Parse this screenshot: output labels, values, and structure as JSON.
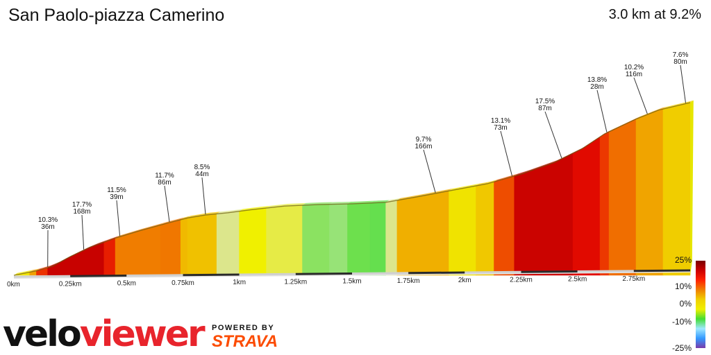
{
  "title": "San Paolo-piazza Camerino",
  "summary": "3.0 km at 9.2%",
  "branding": {
    "logo_velo": "velo",
    "logo_viewer": "viewer",
    "powered_by": "POWERED BY",
    "strava": "STRAVA"
  },
  "chart_data": {
    "type": "area",
    "xlabel": "",
    "ylabel": "",
    "xlim": [
      0,
      3.0
    ],
    "x_ticks": [
      {
        "km": 0,
        "label": "0km"
      },
      {
        "km": 0.25,
        "label": "0.25km"
      },
      {
        "km": 0.5,
        "label": "0.5km"
      },
      {
        "km": 0.75,
        "label": "0.75km"
      },
      {
        "km": 1.0,
        "label": "1km"
      },
      {
        "km": 1.25,
        "label": "1.25km"
      },
      {
        "km": 1.5,
        "label": "1.5km"
      },
      {
        "km": 1.75,
        "label": "1.75km"
      },
      {
        "km": 2.0,
        "label": "2km"
      },
      {
        "km": 2.25,
        "label": "2.25km"
      },
      {
        "km": 2.5,
        "label": "2.5km"
      },
      {
        "km": 2.75,
        "label": "2.75km"
      }
    ],
    "profile": [
      [
        0.0,
        0
      ],
      [
        0.1,
        6
      ],
      [
        0.17,
        12
      ],
      [
        0.25,
        25
      ],
      [
        0.34,
        38
      ],
      [
        0.45,
        50
      ],
      [
        0.56,
        60
      ],
      [
        0.68,
        70
      ],
      [
        0.77,
        77
      ],
      [
        0.85,
        81
      ],
      [
        0.95,
        84
      ],
      [
        1.05,
        88
      ],
      [
        1.2,
        93
      ],
      [
        1.35,
        95
      ],
      [
        1.5,
        96
      ],
      [
        1.65,
        98
      ],
      [
        1.8,
        106
      ],
      [
        1.94,
        114
      ],
      [
        2.1,
        123
      ],
      [
        2.25,
        136
      ],
      [
        2.4,
        152
      ],
      [
        2.52,
        170
      ],
      [
        2.62,
        190
      ],
      [
        2.76,
        210
      ],
      [
        2.86,
        222
      ],
      [
        3.0,
        232
      ]
    ],
    "segments": [
      {
        "from": 0.0,
        "to": 0.07,
        "gradient": 6.0
      },
      {
        "from": 0.07,
        "to": 0.1,
        "gradient": 10.3
      },
      {
        "from": 0.1,
        "to": 0.15,
        "gradient": 14.0
      },
      {
        "from": 0.15,
        "to": 0.4,
        "gradient": 17.7
      },
      {
        "from": 0.4,
        "to": 0.45,
        "gradient": 15.0
      },
      {
        "from": 0.45,
        "to": 0.65,
        "gradient": 11.5
      },
      {
        "from": 0.65,
        "to": 0.74,
        "gradient": 11.7
      },
      {
        "from": 0.74,
        "to": 0.77,
        "gradient": 9.0
      },
      {
        "from": 0.77,
        "to": 0.9,
        "gradient": 8.5
      },
      {
        "from": 0.9,
        "to": 1.0,
        "gradient": 3.0
      },
      {
        "from": 1.0,
        "to": 1.12,
        "gradient": 5.0
      },
      {
        "from": 1.12,
        "to": 1.28,
        "gradient": 4.0
      },
      {
        "from": 1.28,
        "to": 1.4,
        "gradient": 1.5
      },
      {
        "from": 1.4,
        "to": 1.48,
        "gradient": 0.3
      },
      {
        "from": 1.48,
        "to": 1.58,
        "gradient": 1.2
      },
      {
        "from": 1.58,
        "to": 1.65,
        "gradient": 0.6
      },
      {
        "from": 1.65,
        "to": 1.7,
        "gradient": 3.0
      },
      {
        "from": 1.7,
        "to": 1.93,
        "gradient": 9.7
      },
      {
        "from": 1.93,
        "to": 2.05,
        "gradient": 6.0
      },
      {
        "from": 2.05,
        "to": 2.13,
        "gradient": 8.0
      },
      {
        "from": 2.13,
        "to": 2.22,
        "gradient": 13.1
      },
      {
        "from": 2.22,
        "to": 2.48,
        "gradient": 17.5
      },
      {
        "from": 2.48,
        "to": 2.6,
        "gradient": 16.0
      },
      {
        "from": 2.6,
        "to": 2.64,
        "gradient": 13.8
      },
      {
        "from": 2.64,
        "to": 2.76,
        "gradient": 12.0
      },
      {
        "from": 2.76,
        "to": 2.88,
        "gradient": 10.2
      },
      {
        "from": 2.88,
        "to": 3.0,
        "gradient": 7.6
      }
    ],
    "annotations": [
      {
        "km": 0.15,
        "gradient": "10.3%",
        "length": "36m"
      },
      {
        "km": 0.31,
        "gradient": "17.7%",
        "length": "168m"
      },
      {
        "km": 0.47,
        "gradient": "11.5%",
        "length": "39m"
      },
      {
        "km": 0.69,
        "gradient": "11.7%",
        "length": "86m"
      },
      {
        "km": 0.85,
        "gradient": "8.5%",
        "length": "44m"
      },
      {
        "km": 1.87,
        "gradient": "9.7%",
        "length": "166m"
      },
      {
        "km": 2.21,
        "gradient": "13.1%",
        "length": "73m"
      },
      {
        "km": 2.43,
        "gradient": "17.5%",
        "length": "87m"
      },
      {
        "km": 2.63,
        "gradient": "13.8%",
        "length": "28m"
      },
      {
        "km": 2.81,
        "gradient": "10.2%",
        "length": "116m"
      },
      {
        "km": 2.98,
        "gradient": "7.6%",
        "length": "80m"
      }
    ],
    "legend": {
      "labels": [
        "25%",
        "10%",
        "0%",
        "-10%",
        "-25%"
      ],
      "stops": [
        "#7a0000",
        "#cc0000",
        "#ff2200",
        "#f08000",
        "#f0d000",
        "#f0f000",
        "#44dd33",
        "#9fe8ff",
        "#3399ff",
        "#7a3aaa"
      ]
    }
  }
}
